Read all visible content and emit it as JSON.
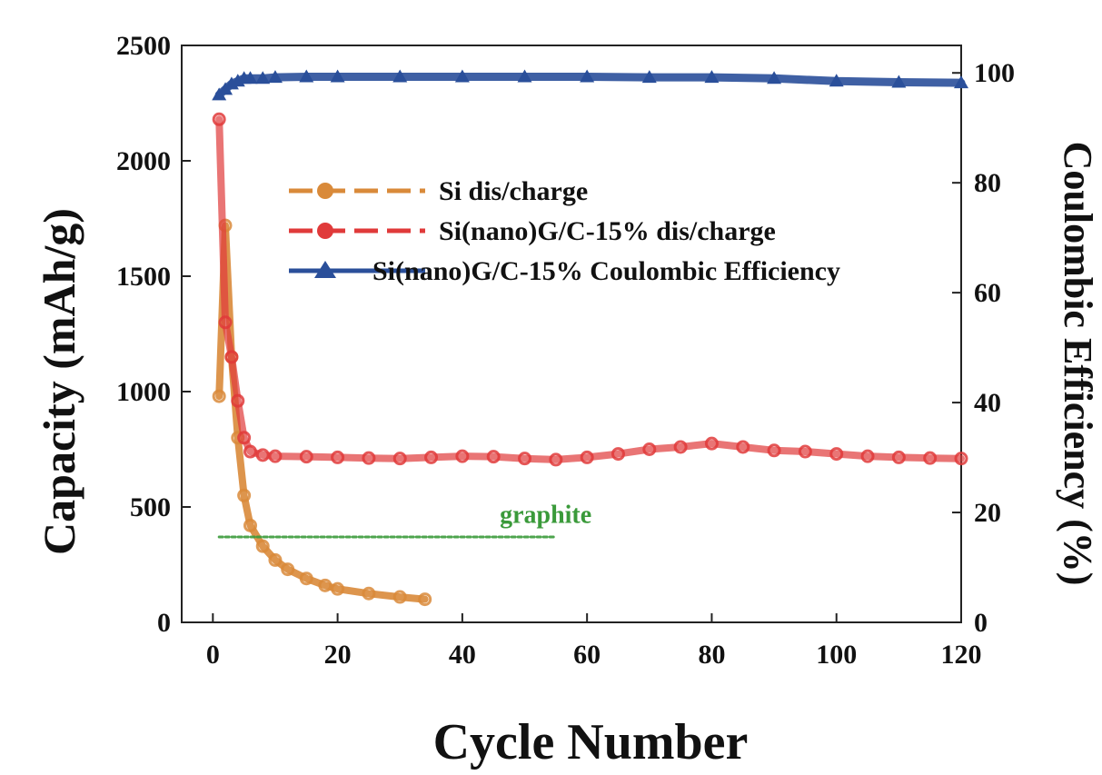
{
  "chart_data": {
    "type": "line",
    "xlabel": "Cycle Number",
    "ylabel": "Capacity (mAh/g)",
    "ylabel_right": "Coulombic Efficiency (%)",
    "xlim": [
      -5,
      120
    ],
    "ylim": [
      0,
      2500
    ],
    "ylim_right": [
      0,
      105
    ],
    "x_ticks": [
      0,
      20,
      40,
      60,
      80,
      100,
      120
    ],
    "y_ticks": [
      0,
      500,
      1000,
      1500,
      2000,
      2500
    ],
    "y_ticks_right": [
      0,
      20,
      40,
      60,
      80,
      100
    ],
    "legend_position": "upper-left",
    "annotation": {
      "text": "graphite",
      "color": "#3a9a3a",
      "x": 46,
      "y": 470
    },
    "series": [
      {
        "name": "Si dis/charge",
        "axis": "left",
        "color": "#d98a3a",
        "marker": "circle",
        "x": [
          1,
          2,
          3,
          4,
          5,
          6,
          8,
          10,
          12,
          15,
          18,
          20,
          25,
          30,
          34
        ],
        "y": [
          980,
          1720,
          1150,
          800,
          550,
          420,
          330,
          270,
          230,
          190,
          160,
          145,
          125,
          110,
          100
        ]
      },
      {
        "name": "Si(nano)G/C-15% dis/charge",
        "axis": "left",
        "color": "#e03a3a",
        "marker": "circle",
        "x": [
          1,
          2,
          3,
          4,
          5,
          6,
          8,
          10,
          15,
          20,
          25,
          30,
          35,
          40,
          45,
          50,
          55,
          60,
          65,
          70,
          75,
          80,
          85,
          90,
          95,
          100,
          105,
          110,
          115,
          120
        ],
        "y": [
          2180,
          1300,
          1150,
          960,
          800,
          740,
          725,
          720,
          718,
          715,
          712,
          710,
          715,
          720,
          718,
          710,
          705,
          715,
          730,
          750,
          760,
          775,
          760,
          745,
          740,
          730,
          720,
          715,
          712,
          710
        ]
      },
      {
        "name": "Si(nano)G/C-15% Coulombic Efficiency",
        "axis": "right",
        "color": "#2a4f9a",
        "marker": "triangle",
        "x": [
          1,
          2,
          3,
          4,
          5,
          6,
          8,
          10,
          15,
          20,
          30,
          40,
          50,
          60,
          70,
          80,
          90,
          100,
          110,
          120
        ],
        "y": [
          96,
          97,
          98,
          98.5,
          99,
          99,
          99,
          99.2,
          99.3,
          99.3,
          99.3,
          99.3,
          99.3,
          99.3,
          99.2,
          99.2,
          99,
          98.5,
          98.3,
          98.2
        ]
      },
      {
        "name": "graphite",
        "axis": "left",
        "color": "#3a9a3a",
        "marker": "none",
        "x": [
          1,
          10,
          20,
          30,
          40,
          50,
          55
        ],
        "y": [
          370,
          370,
          370,
          370,
          370,
          370,
          370
        ]
      }
    ]
  }
}
